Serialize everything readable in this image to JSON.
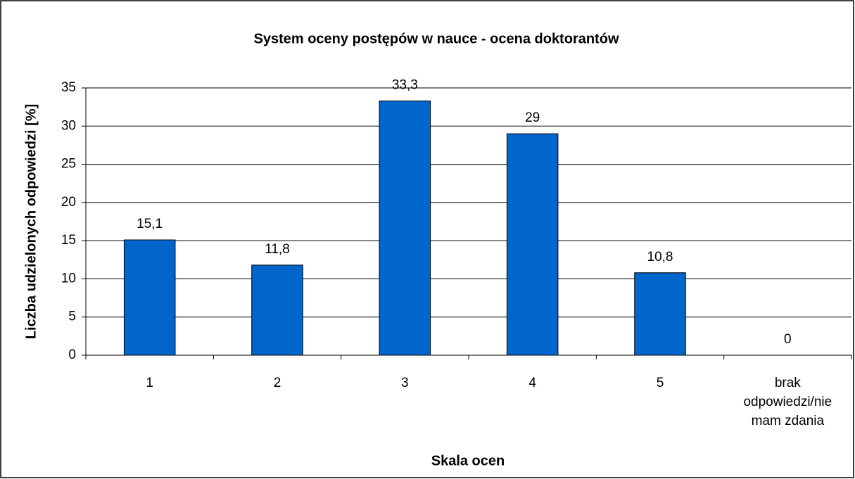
{
  "chart_data": {
    "type": "bar",
    "title": "System oceny postępów w nauce - ocena doktorantów",
    "x_label": "Skala ocen",
    "y_label": "Liczba udzielonych odpowiedzi [%]",
    "categories": [
      "1",
      "2",
      "3",
      "4",
      "5",
      "brak odpowiedzi/nie mam zdania"
    ],
    "values": [
      15.1,
      11.8,
      33.3,
      29,
      10.8,
      0
    ],
    "value_labels": [
      "15,1",
      "11,8",
      "33,3",
      "29",
      "10,8",
      "0"
    ],
    "color": "#0066cc",
    "ylim": [
      0,
      35
    ],
    "yticks": [
      0,
      5,
      10,
      15,
      20,
      25,
      30,
      35
    ],
    "grid": true
  }
}
